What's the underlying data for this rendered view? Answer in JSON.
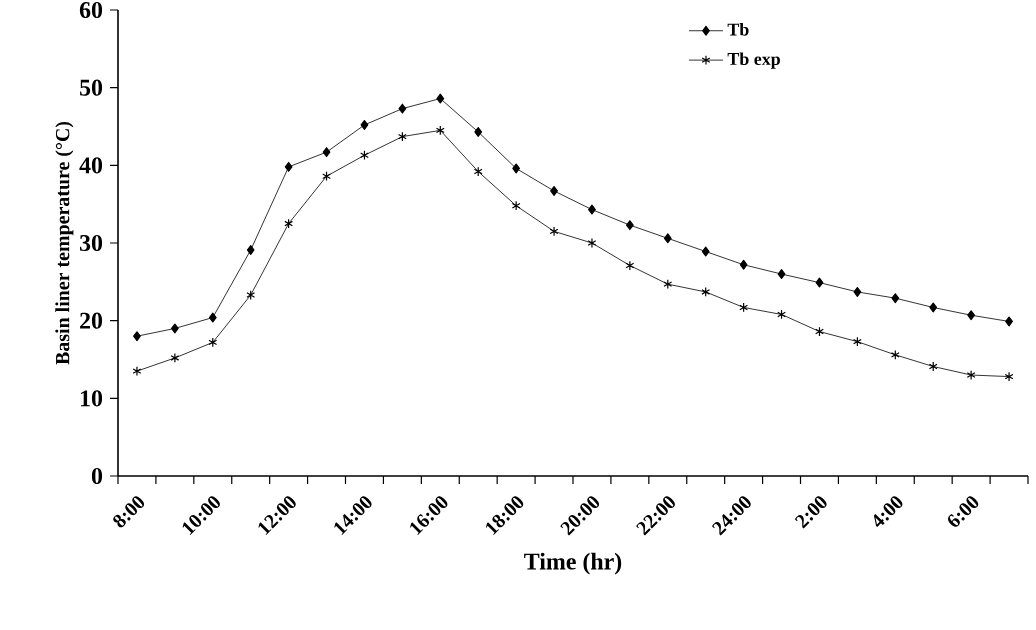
{
  "chart_data": {
    "type": "line",
    "xlabel": "Time (hr)",
    "ylabel": "Basin liner temperature (°C)",
    "categories": [
      "8:00",
      null,
      "10:00",
      null,
      "12:00",
      null,
      "14:00",
      null,
      "16:00",
      null,
      "18:00",
      null,
      "20:00",
      null,
      "22:00",
      null,
      "24:00",
      null,
      "2:00",
      null,
      "4:00",
      null,
      "6:00",
      null
    ],
    "series": [
      {
        "name": "Tb",
        "color": "#000000",
        "marker": "diamond",
        "values": [
          18.0,
          19.0,
          20.4,
          29.1,
          39.8,
          41.7,
          45.2,
          47.3,
          48.6,
          44.3,
          39.6,
          36.7,
          34.3,
          32.3,
          30.6,
          28.9,
          27.2,
          26.0,
          24.9,
          23.7,
          22.9,
          21.7,
          20.7,
          19.9
        ]
      },
      {
        "name": "Tb exp",
        "color": "#000000",
        "marker": "cross",
        "values": [
          13.5,
          15.2,
          17.2,
          23.3,
          32.5,
          38.6,
          41.3,
          43.7,
          44.5,
          39.2,
          34.8,
          31.5,
          30.0,
          27.1,
          24.7,
          23.7,
          21.7,
          20.8,
          18.6,
          17.3,
          15.6,
          14.1,
          13.0,
          12.8
        ]
      }
    ],
    "ylim": [
      0,
      60
    ],
    "yticks": [
      0,
      10,
      20,
      30,
      40,
      50,
      60
    ],
    "legend": "top right",
    "grid": false,
    "line_style": "solid"
  }
}
